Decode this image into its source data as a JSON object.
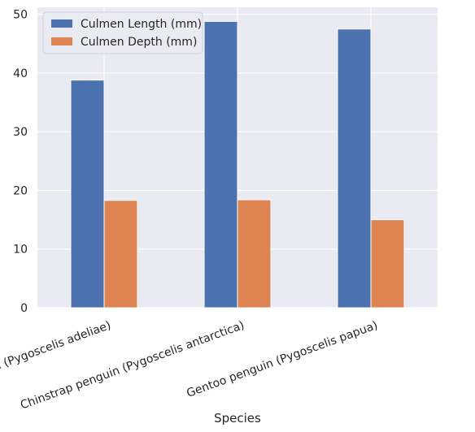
{
  "chart_data": {
    "type": "bar",
    "title": "",
    "xlabel": "Species",
    "ylabel": "",
    "categories": [
      "Adelie Penguin (Pygoscelis adeliae)",
      "Chinstrap penguin (Pygoscelis antarctica)",
      "Gentoo penguin (Pygoscelis papua)"
    ],
    "series": [
      {
        "name": "Culmen Length (mm)",
        "values": [
          38.8,
          48.8,
          47.5
        ],
        "color": "#4c72b0"
      },
      {
        "name": "Culmen Depth (mm)",
        "values": [
          18.3,
          18.4,
          15.0
        ],
        "color": "#dd8452"
      }
    ],
    "ylim": [
      0,
      51.2
    ],
    "yticks": [
      0,
      10,
      20,
      30,
      40,
      50
    ],
    "grid": true,
    "legend_position": "top-left",
    "x_tick_rotation_deg": 20
  }
}
